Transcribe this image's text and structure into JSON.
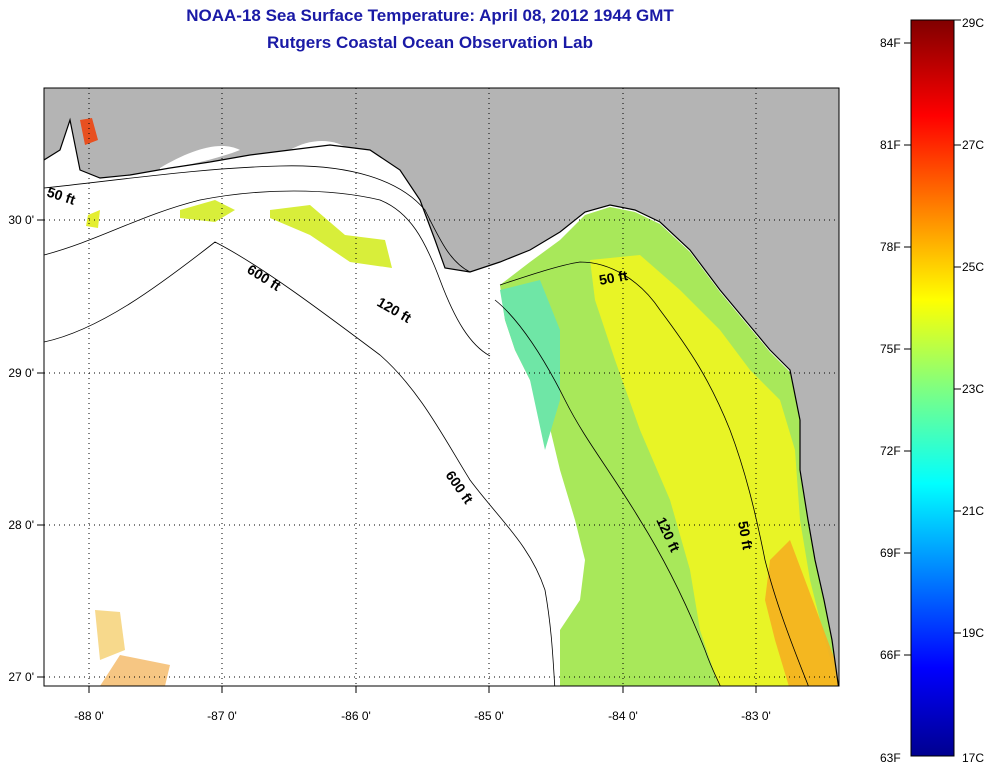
{
  "title_line1": "NOAA-18 Sea Surface Temperature:  April 08, 2012 1944 GMT",
  "title_line2": "Rutgers Coastal Ocean Observation Lab",
  "map": {
    "longitude_ticks": [
      "-88 0'",
      "-87 0'",
      "-86 0'",
      "-85 0'",
      "-84 0'",
      "-83 0'"
    ],
    "latitude_ticks": [
      "30 0'",
      "29 0'",
      "28 0'",
      "27 0'"
    ],
    "contour_labels": [
      "50 ft",
      "600 ft",
      "120 ft",
      "50 ft",
      "600 ft",
      "120 ft",
      "50 ft"
    ],
    "land_color": "#b4b4b4",
    "no_data_color": "#ffffff"
  },
  "colorbar": {
    "fahrenheit_labels": [
      "84F",
      "81F",
      "78F",
      "75F",
      "72F",
      "69F",
      "66F",
      "63F"
    ],
    "celsius_labels": [
      "29C",
      "27C",
      "25C",
      "23C",
      "21C",
      "19C",
      "17C"
    ],
    "range_c": [
      17,
      29
    ],
    "colormap": "jet"
  }
}
